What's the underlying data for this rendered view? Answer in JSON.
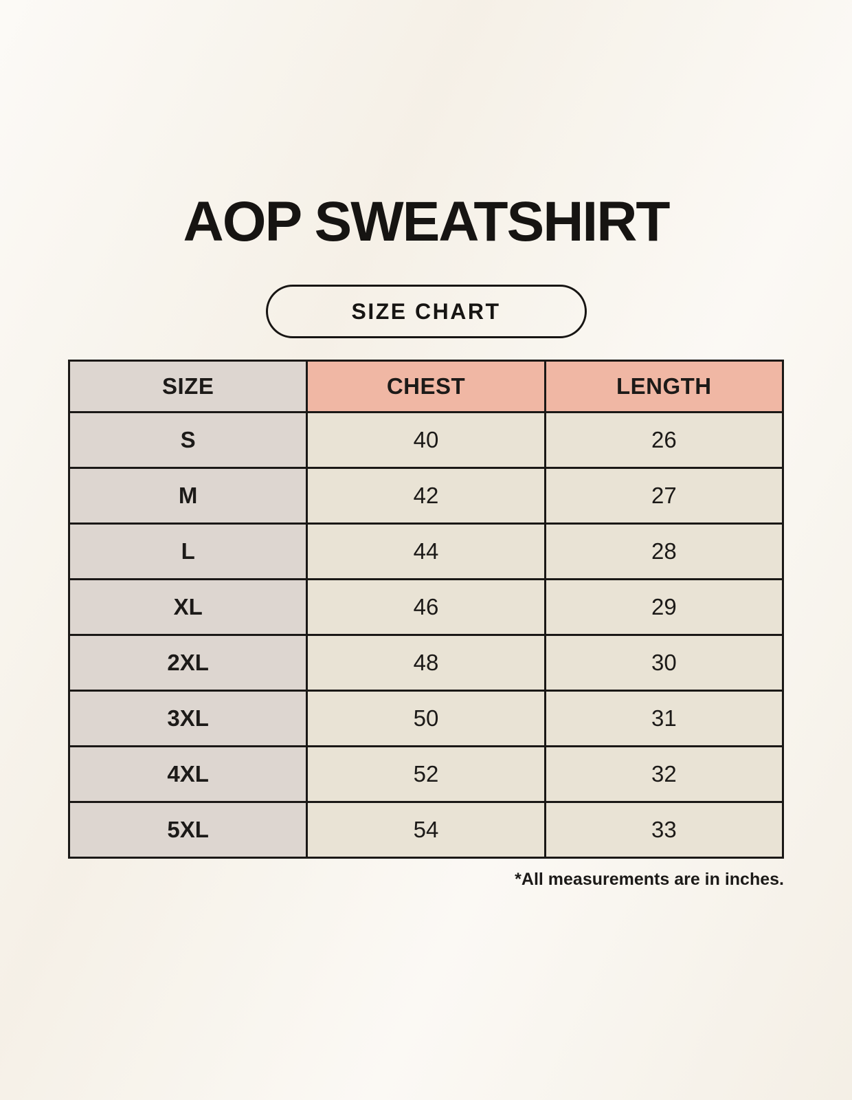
{
  "page": {
    "title": "AOP SWEATSHIRT",
    "badge_label": "SIZE CHART",
    "footnote": "*All measurements are in inches."
  },
  "table": {
    "headers": [
      "SIZE",
      "CHEST",
      "LENGTH"
    ],
    "rows": [
      [
        "S",
        "40",
        "26"
      ],
      [
        "M",
        "42",
        "27"
      ],
      [
        "L",
        "44",
        "28"
      ],
      [
        "XL",
        "46",
        "29"
      ],
      [
        "2XL",
        "48",
        "30"
      ],
      [
        "3XL",
        "50",
        "31"
      ],
      [
        "4XL",
        "52",
        "32"
      ],
      [
        "5XL",
        "54",
        "33"
      ]
    ],
    "unit": "inches"
  },
  "colors": {
    "background": "#f8f4ec",
    "size_column_bg": "#ddd6d0",
    "measure_header_bg": "#f0b7a4",
    "measure_cell_bg": "#e9e3d5",
    "border": "#1a1816",
    "text": "#1c1a18"
  }
}
